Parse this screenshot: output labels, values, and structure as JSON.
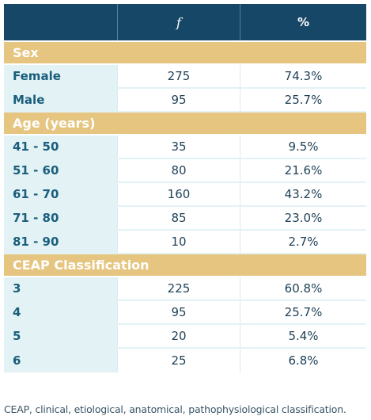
{
  "header": {
    "col1": "",
    "col2": "f",
    "col3": "%"
  },
  "sections": [
    {
      "title": "Sex",
      "rows": [
        {
          "label": "Female",
          "f": "275",
          "pct": "74.3%"
        },
        {
          "label": "Male",
          "f": "95",
          "pct": "25.7%"
        }
      ]
    },
    {
      "title": "Age (years)",
      "rows": [
        {
          "label": "41 - 50",
          "f": "35",
          "pct": "9.5%"
        },
        {
          "label": "51 - 60",
          "f": "80",
          "pct": "21.6%"
        },
        {
          "label": "61 - 70",
          "f": "160",
          "pct": "43.2%"
        },
        {
          "label": "71 - 80",
          "f": "85",
          "pct": "23.0%"
        },
        {
          "label": "81 - 90",
          "f": "10",
          "pct": "2.7%"
        }
      ]
    },
    {
      "title": "CEAP Classification",
      "rows": [
        {
          "label": "3",
          "f": "225",
          "pct": "60.8%"
        },
        {
          "label": "4",
          "f": "95",
          "pct": "25.7%"
        },
        {
          "label": "5",
          "f": "20",
          "pct": "5.4%"
        },
        {
          "label": "6",
          "f": "25",
          "pct": "6.8%"
        }
      ]
    }
  ],
  "caption": "CEAP, clinical, etiological, anatomical, pathophysiological classification.",
  "colors": {
    "header_bg": "#174766",
    "section_bg": "#e5c57f",
    "label_bg": "#e3f2f5",
    "label_text": "#1a5e7c"
  }
}
